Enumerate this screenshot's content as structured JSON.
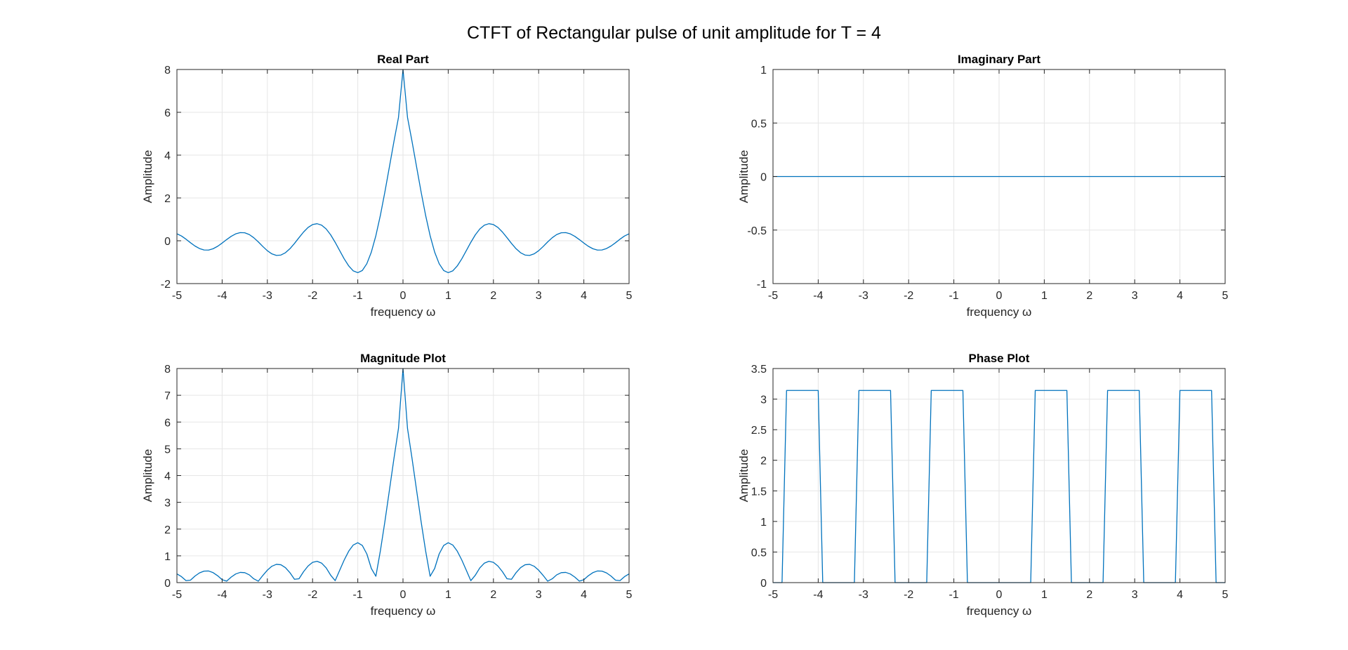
{
  "figure_title": "CTFT of Rectangular pulse of unit amplitude for T = 4",
  "chart_data": [
    {
      "type": "line",
      "title": "Real Part",
      "xlabel": "frequency ω",
      "ylabel": "Amplitude",
      "xlim": [
        -5,
        5
      ],
      "ylim": [
        -2,
        8
      ],
      "xticks": [
        -5,
        -4,
        -3,
        -2,
        -1,
        0,
        1,
        2,
        3,
        4,
        5
      ],
      "xtick_labels": [
        "-5",
        "-4",
        "-3",
        "-2",
        "-1",
        "0",
        "1",
        "2",
        "3",
        "4",
        "5"
      ],
      "yticks": [
        -2,
        0,
        2,
        4,
        6,
        8
      ],
      "ytick_labels": [
        "-2",
        "0",
        "2",
        "4",
        "6",
        "8"
      ],
      "grid": true,
      "color": "#0072BD",
      "series": [
        {
          "x": [
            -5,
            -4.9,
            -4.8,
            -4.7,
            -4.6,
            -4.5,
            -4.4,
            -4.3,
            -4.2,
            -4.1,
            -4,
            -3.9,
            -3.8,
            -3.7,
            -3.6,
            -3.5,
            -3.4,
            -3.3,
            -3.2,
            -3.1,
            -3,
            -2.9,
            -2.8,
            -2.7,
            -2.6,
            -2.5,
            -2.4,
            -2.3,
            -2.2,
            -2.1,
            -2,
            -1.9,
            -1.8,
            -1.7,
            -1.6,
            -1.5,
            -1.4,
            -1.3,
            -1.2,
            -1.1,
            -1,
            -0.9,
            -0.8,
            -0.7,
            -0.6,
            -0.5,
            -0.4,
            -0.3,
            -0.2,
            -0.1,
            0,
            0.1,
            0.2,
            0.3,
            0.4,
            0.5,
            0.6,
            0.7,
            0.8,
            0.9,
            1,
            1.1,
            1.2,
            1.3,
            1.4,
            1.5,
            1.6,
            1.7,
            1.8,
            1.9,
            2,
            2.1,
            2.2,
            2.3,
            2.4,
            2.5,
            2.6,
            2.7,
            2.8,
            2.9,
            3,
            3.1,
            3.2,
            3.3,
            3.4,
            3.5,
            3.6,
            3.7,
            3.8,
            3.9,
            4,
            4.1,
            4.2,
            4.3,
            4.4,
            4.5,
            4.6,
            4.7,
            4.8,
            4.9,
            5
          ],
          "y": [
            0.326,
            0.224,
            0.075,
            -0.092,
            -0.246,
            -0.364,
            -0.43,
            -0.434,
            -0.373,
            -0.258,
            -0.108,
            0.056,
            0.207,
            0.323,
            0.382,
            0.372,
            0.29,
            0.142,
            -0.053,
            -0.268,
            -0.465,
            -0.612,
            -0.684,
            -0.667,
            -0.558,
            -0.37,
            -0.125,
            0.145,
            0.406,
            0.62,
            0.757,
            0.797,
            0.729,
            0.553,
            0.278,
            -0.073,
            -0.462,
            -0.846,
            -1.176,
            -1.406,
            -1.49,
            -1.389,
            -1.072,
            -0.528,
            0.237,
            1.19,
            2.285,
            3.458,
            4.639,
            5.76,
            8,
            5.76,
            4.639,
            3.458,
            2.285,
            1.19,
            0.237,
            -0.528,
            -1.072,
            -1.389,
            -1.49,
            -1.406,
            -1.176,
            -0.846,
            -0.462,
            -0.073,
            0.278,
            0.553,
            0.729,
            0.797,
            0.757,
            0.62,
            0.406,
            0.145,
            -0.125,
            -0.37,
            -0.558,
            -0.667,
            -0.684,
            -0.612,
            -0.465,
            -0.268,
            -0.053,
            0.142,
            0.29,
            0.372,
            0.382,
            0.323,
            0.207,
            0.056,
            -0.108,
            -0.258,
            -0.373,
            -0.434,
            -0.43,
            -0.364,
            -0.246,
            -0.092,
            0.075,
            0.224,
            0.326
          ]
        }
      ]
    },
    {
      "type": "line",
      "title": "Imaginary Part",
      "xlabel": "frequency ω",
      "ylabel": "Amplitude",
      "xlim": [
        -5,
        5
      ],
      "ylim": [
        -1,
        1
      ],
      "xticks": [
        -5,
        -4,
        -3,
        -2,
        -1,
        0,
        1,
        2,
        3,
        4,
        5
      ],
      "xtick_labels": [
        "-5",
        "-4",
        "-3",
        "-2",
        "-1",
        "0",
        "1",
        "2",
        "3",
        "4",
        "5"
      ],
      "yticks": [
        -1,
        -0.5,
        0,
        0.5,
        1
      ],
      "ytick_labels": [
        "-1",
        "-0.5",
        "0",
        "0.5",
        "1"
      ],
      "grid": true,
      "color": "#0072BD",
      "series": [
        {
          "x": [
            -5,
            5
          ],
          "y": [
            0,
            0
          ]
        }
      ]
    },
    {
      "type": "line",
      "title": "Magnitude Plot",
      "xlabel": "frequency ω",
      "ylabel": "Amplitude",
      "xlim": [
        -5,
        5
      ],
      "ylim": [
        0,
        8
      ],
      "xticks": [
        -5,
        -4,
        -3,
        -2,
        -1,
        0,
        1,
        2,
        3,
        4,
        5
      ],
      "xtick_labels": [
        "-5",
        "-4",
        "-3",
        "-2",
        "-1",
        "0",
        "1",
        "2",
        "3",
        "4",
        "5"
      ],
      "yticks": [
        0,
        1,
        2,
        3,
        4,
        5,
        6,
        7,
        8
      ],
      "ytick_labels": [
        "0",
        "1",
        "2",
        "3",
        "4",
        "5",
        "6",
        "7",
        "8"
      ],
      "grid": true,
      "color": "#0072BD",
      "series": [
        {
          "x": [
            -5,
            -4.9,
            -4.8,
            -4.7,
            -4.6,
            -4.5,
            -4.4,
            -4.3,
            -4.2,
            -4.1,
            -4,
            -3.9,
            -3.8,
            -3.7,
            -3.6,
            -3.5,
            -3.4,
            -3.3,
            -3.2,
            -3.1,
            -3,
            -2.9,
            -2.8,
            -2.7,
            -2.6,
            -2.5,
            -2.4,
            -2.3,
            -2.2,
            -2.1,
            -2,
            -1.9,
            -1.8,
            -1.7,
            -1.6,
            -1.5,
            -1.4,
            -1.3,
            -1.2,
            -1.1,
            -1,
            -0.9,
            -0.8,
            -0.7,
            -0.6,
            -0.5,
            -0.4,
            -0.3,
            -0.2,
            -0.1,
            0,
            0.1,
            0.2,
            0.3,
            0.4,
            0.5,
            0.6,
            0.7,
            0.8,
            0.9,
            1,
            1.1,
            1.2,
            1.3,
            1.4,
            1.5,
            1.6,
            1.7,
            1.8,
            1.9,
            2,
            2.1,
            2.2,
            2.3,
            2.4,
            2.5,
            2.6,
            2.7,
            2.8,
            2.9,
            3,
            3.1,
            3.2,
            3.3,
            3.4,
            3.5,
            3.6,
            3.7,
            3.8,
            3.9,
            4,
            4.1,
            4.2,
            4.3,
            4.4,
            4.5,
            4.6,
            4.7,
            4.8,
            4.9,
            5
          ],
          "y": [
            0.326,
            0.224,
            0.075,
            0.092,
            0.246,
            0.364,
            0.43,
            0.434,
            0.373,
            0.258,
            0.108,
            0.056,
            0.207,
            0.323,
            0.382,
            0.372,
            0.29,
            0.142,
            0.053,
            0.268,
            0.465,
            0.612,
            0.684,
            0.667,
            0.558,
            0.37,
            0.125,
            0.145,
            0.406,
            0.62,
            0.757,
            0.797,
            0.729,
            0.553,
            0.278,
            0.073,
            0.462,
            0.846,
            1.176,
            1.406,
            1.49,
            1.389,
            1.072,
            0.528,
            0.237,
            1.19,
            2.285,
            3.458,
            4.639,
            5.76,
            8,
            5.76,
            4.639,
            3.458,
            2.285,
            1.19,
            0.237,
            0.528,
            1.072,
            1.389,
            1.49,
            1.406,
            1.176,
            0.846,
            0.462,
            0.073,
            0.278,
            0.553,
            0.729,
            0.797,
            0.757,
            0.62,
            0.406,
            0.145,
            0.125,
            0.37,
            0.558,
            0.667,
            0.684,
            0.612,
            0.465,
            0.268,
            0.053,
            0.142,
            0.29,
            0.372,
            0.382,
            0.323,
            0.207,
            0.056,
            0.108,
            0.258,
            0.373,
            0.434,
            0.43,
            0.364,
            0.246,
            0.092,
            0.075,
            0.224,
            0.326
          ]
        }
      ]
    },
    {
      "type": "line",
      "title": "Phase Plot",
      "xlabel": "frequency ω",
      "ylabel": "Amplitude",
      "xlim": [
        -5,
        5
      ],
      "ylim": [
        0,
        3.5
      ],
      "xticks": [
        -5,
        -4,
        -3,
        -2,
        -1,
        0,
        1,
        2,
        3,
        4,
        5
      ],
      "xtick_labels": [
        "-5",
        "-4",
        "-3",
        "-2",
        "-1",
        "0",
        "1",
        "2",
        "3",
        "4",
        "5"
      ],
      "yticks": [
        0,
        0.5,
        1,
        1.5,
        2,
        2.5,
        3,
        3.5
      ],
      "ytick_labels": [
        "0",
        "0.5",
        "1",
        "1.5",
        "2",
        "2.5",
        "3",
        "3.5"
      ],
      "grid": true,
      "color": "#0072BD",
      "series": [
        {
          "x": [
            -5,
            -4.8,
            -4.7,
            -4,
            -3.9,
            -3.2,
            -3.1,
            -2.4,
            -2.3,
            -1.6,
            -1.5,
            -0.8,
            -0.7,
            0.7,
            0.8,
            1.5,
            1.6,
            2.3,
            2.4,
            3.1,
            3.2,
            3.9,
            4,
            4.7,
            4.8,
            5
          ],
          "y": [
            0,
            0,
            3.1416,
            3.1416,
            0,
            0,
            3.1416,
            3.1416,
            0,
            0,
            3.1416,
            3.1416,
            0,
            0,
            3.1416,
            3.1416,
            0,
            0,
            3.1416,
            3.1416,
            0,
            0,
            3.1416,
            3.1416,
            0,
            0
          ]
        }
      ]
    }
  ]
}
